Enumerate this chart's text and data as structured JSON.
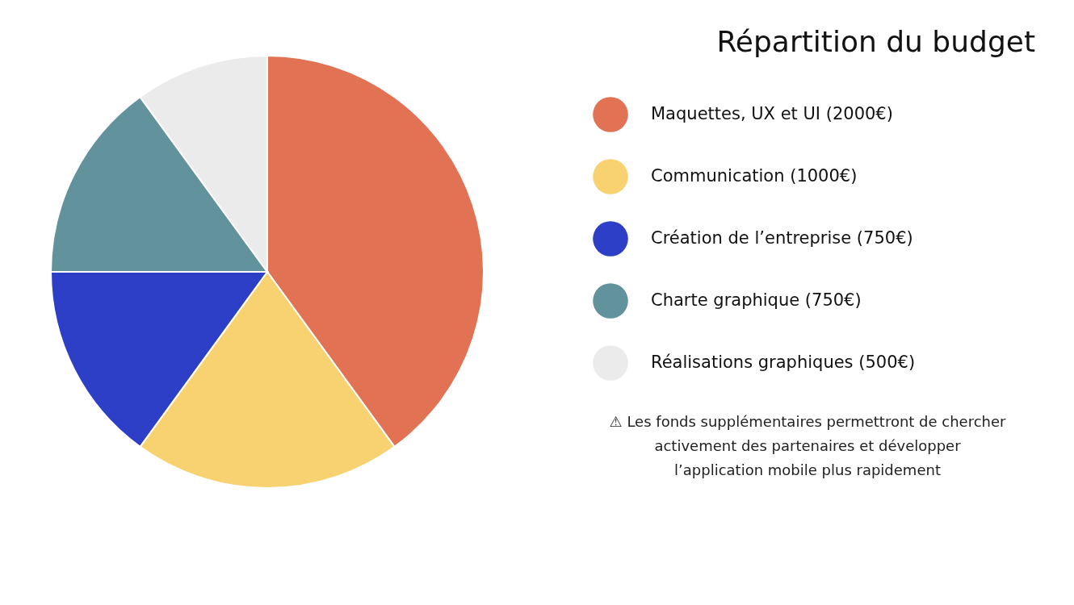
{
  "chart_data": {
    "type": "pie",
    "title": "Répartition du budget",
    "categories": [
      "Maquettes, UX et UI",
      "Communication",
      "Création de l’entreprise",
      "Charte graphique",
      "Réalisations graphiques"
    ],
    "values": [
      2000,
      1000,
      750,
      750,
      500
    ],
    "value_labels": [
      "(2000€)",
      "(1000€)",
      "(750€)",
      "(750€)",
      "(500€)"
    ],
    "colors": [
      "#e27254",
      "#f8d170",
      "#2d3fc6",
      "#62939d",
      "#ebebeb"
    ],
    "legend": "right",
    "annotations": [
      "⚠ Les fonds supplémentaires permettront de chercher activement des partenaires et développer l’application mobile plus rapidement"
    ]
  }
}
